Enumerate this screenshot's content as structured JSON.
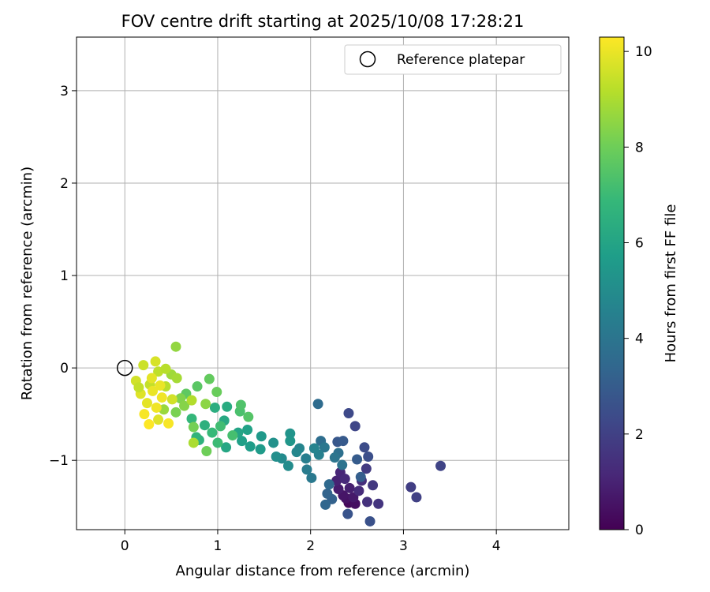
{
  "chart_data": {
    "type": "scatter",
    "title": "FOV centre drift starting at 2025/10/08 17:28:21",
    "xlabel": "Angular distance from reference (arcmin)",
    "ylabel": "Rotation from reference (arcmin)",
    "xlim": [
      -0.52,
      4.78
    ],
    "ylim": [
      -1.75,
      3.58
    ],
    "xticks": [
      0,
      1,
      2,
      3,
      4
    ],
    "yticks": [
      -1,
      0,
      1,
      2,
      3
    ],
    "xtick_labels": [
      "0",
      "1",
      "2",
      "3",
      "4"
    ],
    "ytick_labels": [
      "−1",
      "0",
      "1",
      "2",
      "3"
    ],
    "grid": true,
    "legend": {
      "placement": "top-right",
      "label": "Reference platepar",
      "marker": "open-circle"
    },
    "reference_point": {
      "x": 0,
      "y": 0
    },
    "colorbar": {
      "label": "Hours from first FF file",
      "colormap": "viridis",
      "range": [
        0,
        10.3
      ],
      "ticks": [
        0,
        2,
        4,
        6,
        8,
        10
      ],
      "tick_labels": [
        "0",
        "2",
        "4",
        "6",
        "8",
        "10"
      ],
      "stops": [
        "#440154",
        "#482878",
        "#3e4989",
        "#31688e",
        "#26828e",
        "#1f9e89",
        "#35b779",
        "#6ece58",
        "#b5de2b",
        "#fde725"
      ]
    },
    "points": [
      {
        "x": 2.41,
        "y": -1.46,
        "h": 0.2
      },
      {
        "x": 2.44,
        "y": -1.43,
        "h": 0.3
      },
      {
        "x": 2.48,
        "y": -1.47,
        "h": 0.4
      },
      {
        "x": 2.38,
        "y": -1.41,
        "h": 0.5
      },
      {
        "x": 2.35,
        "y": -1.38,
        "h": 0.6
      },
      {
        "x": 2.46,
        "y": -1.4,
        "h": 0.7
      },
      {
        "x": 2.3,
        "y": -1.31,
        "h": 0.8
      },
      {
        "x": 2.42,
        "y": -1.3,
        "h": 0.9
      },
      {
        "x": 2.28,
        "y": -1.22,
        "h": 1.0
      },
      {
        "x": 2.32,
        "y": -1.13,
        "h": 1.1
      },
      {
        "x": 2.37,
        "y": -1.2,
        "h": 1.2
      },
      {
        "x": 2.52,
        "y": -1.33,
        "h": 1.3
      },
      {
        "x": 2.55,
        "y": -1.22,
        "h": 1.4
      },
      {
        "x": 2.61,
        "y": -1.45,
        "h": 1.5
      },
      {
        "x": 2.73,
        "y": -1.47,
        "h": 1.6
      },
      {
        "x": 2.67,
        "y": -1.27,
        "h": 1.7
      },
      {
        "x": 2.6,
        "y": -1.09,
        "h": 1.8
      },
      {
        "x": 3.08,
        "y": -1.29,
        "h": 1.9
      },
      {
        "x": 3.14,
        "y": -1.4,
        "h": 2.0
      },
      {
        "x": 3.4,
        "y": -1.06,
        "h": 2.1
      },
      {
        "x": 2.48,
        "y": -0.63,
        "h": 2.2
      },
      {
        "x": 2.41,
        "y": -0.49,
        "h": 2.3
      },
      {
        "x": 2.58,
        "y": -0.86,
        "h": 2.4
      },
      {
        "x": 2.62,
        "y": -0.96,
        "h": 2.5
      },
      {
        "x": 2.64,
        "y": -1.66,
        "h": 2.6
      },
      {
        "x": 2.4,
        "y": -1.58,
        "h": 2.7
      },
      {
        "x": 2.29,
        "y": -0.8,
        "h": 2.8
      },
      {
        "x": 2.35,
        "y": -0.79,
        "h": 2.9
      },
      {
        "x": 2.5,
        "y": -0.99,
        "h": 3.0
      },
      {
        "x": 2.54,
        "y": -1.18,
        "h": 3.1
      },
      {
        "x": 2.23,
        "y": -1.42,
        "h": 3.2
      },
      {
        "x": 2.18,
        "y": -1.36,
        "h": 3.3
      },
      {
        "x": 2.16,
        "y": -1.48,
        "h": 3.4
      },
      {
        "x": 2.2,
        "y": -1.26,
        "h": 3.5
      },
      {
        "x": 2.08,
        "y": -0.39,
        "h": 3.6
      },
      {
        "x": 2.11,
        "y": -0.79,
        "h": 3.7
      },
      {
        "x": 2.3,
        "y": -0.92,
        "h": 3.8
      },
      {
        "x": 2.34,
        "y": -1.05,
        "h": 3.9
      },
      {
        "x": 2.26,
        "y": -0.97,
        "h": 4.0
      },
      {
        "x": 2.15,
        "y": -0.86,
        "h": 4.1
      },
      {
        "x": 2.01,
        "y": -1.19,
        "h": 4.2
      },
      {
        "x": 1.96,
        "y": -1.1,
        "h": 4.3
      },
      {
        "x": 1.95,
        "y": -0.98,
        "h": 4.4
      },
      {
        "x": 2.09,
        "y": -0.94,
        "h": 4.5
      },
      {
        "x": 2.04,
        "y": -0.87,
        "h": 4.6
      },
      {
        "x": 1.88,
        "y": -0.87,
        "h": 4.7
      },
      {
        "x": 1.85,
        "y": -0.91,
        "h": 4.8
      },
      {
        "x": 1.69,
        "y": -0.98,
        "h": 4.9
      },
      {
        "x": 1.76,
        "y": -1.06,
        "h": 5.0
      },
      {
        "x": 1.63,
        "y": -0.96,
        "h": 5.1
      },
      {
        "x": 1.6,
        "y": -0.81,
        "h": 5.2
      },
      {
        "x": 1.78,
        "y": -0.71,
        "h": 5.3
      },
      {
        "x": 1.78,
        "y": -0.79,
        "h": 5.4
      },
      {
        "x": 1.47,
        "y": -0.74,
        "h": 5.5
      },
      {
        "x": 1.46,
        "y": -0.88,
        "h": 5.6
      },
      {
        "x": 1.35,
        "y": -0.85,
        "h": 5.7
      },
      {
        "x": 1.26,
        "y": -0.79,
        "h": 5.8
      },
      {
        "x": 1.32,
        "y": -0.67,
        "h": 5.9
      },
      {
        "x": 1.22,
        "y": -0.7,
        "h": 6.0
      },
      {
        "x": 1.09,
        "y": -0.86,
        "h": 6.1
      },
      {
        "x": 1.07,
        "y": -0.57,
        "h": 6.2
      },
      {
        "x": 1.1,
        "y": -0.42,
        "h": 6.3
      },
      {
        "x": 0.97,
        "y": -0.43,
        "h": 6.4
      },
      {
        "x": 0.86,
        "y": -0.62,
        "h": 6.5
      },
      {
        "x": 0.8,
        "y": -0.78,
        "h": 6.6
      },
      {
        "x": 0.77,
        "y": -0.75,
        "h": 6.7
      },
      {
        "x": 0.72,
        "y": -0.55,
        "h": 6.8
      },
      {
        "x": 0.94,
        "y": -0.7,
        "h": 6.9
      },
      {
        "x": 1.0,
        "y": -0.81,
        "h": 7.0
      },
      {
        "x": 1.03,
        "y": -0.63,
        "h": 7.1
      },
      {
        "x": 1.16,
        "y": -0.73,
        "h": 7.2
      },
      {
        "x": 1.24,
        "y": -0.47,
        "h": 7.3
      },
      {
        "x": 1.25,
        "y": -0.4,
        "h": 7.4
      },
      {
        "x": 1.33,
        "y": -0.53,
        "h": 7.5
      },
      {
        "x": 0.78,
        "y": -0.2,
        "h": 7.6
      },
      {
        "x": 0.66,
        "y": -0.28,
        "h": 7.7
      },
      {
        "x": 0.91,
        "y": -0.12,
        "h": 7.8
      },
      {
        "x": 0.99,
        "y": -0.26,
        "h": 7.9
      },
      {
        "x": 0.88,
        "y": -0.9,
        "h": 8.0
      },
      {
        "x": 0.74,
        "y": -0.64,
        "h": 8.1
      },
      {
        "x": 0.55,
        "y": -0.48,
        "h": 8.2
      },
      {
        "x": 0.6,
        "y": -0.33,
        "h": 8.3
      },
      {
        "x": 0.64,
        "y": -0.41,
        "h": 8.4
      },
      {
        "x": 0.87,
        "y": -0.39,
        "h": 8.5
      },
      {
        "x": 0.55,
        "y": 0.23,
        "h": 8.6
      },
      {
        "x": 0.42,
        "y": -0.45,
        "h": 8.7
      },
      {
        "x": 0.5,
        "y": -0.07,
        "h": 8.8
      },
      {
        "x": 0.56,
        "y": -0.11,
        "h": 8.9
      },
      {
        "x": 0.74,
        "y": -0.81,
        "h": 9.0
      },
      {
        "x": 0.72,
        "y": -0.35,
        "h": 9.1
      },
      {
        "x": 0.44,
        "y": -0.2,
        "h": 9.2
      },
      {
        "x": 0.36,
        "y": -0.04,
        "h": 9.3
      },
      {
        "x": 0.27,
        "y": -0.18,
        "h": 9.4
      },
      {
        "x": 0.2,
        "y": 0.03,
        "h": 9.5
      },
      {
        "x": 0.12,
        "y": -0.14,
        "h": 9.6
      },
      {
        "x": 0.33,
        "y": 0.07,
        "h": 9.7
      },
      {
        "x": 0.17,
        "y": -0.28,
        "h": 9.8
      },
      {
        "x": 0.24,
        "y": -0.38,
        "h": 9.9
      },
      {
        "x": 0.3,
        "y": -0.25,
        "h": 10.0
      },
      {
        "x": 0.4,
        "y": -0.32,
        "h": 10.1
      },
      {
        "x": 0.47,
        "y": -0.6,
        "h": 10.2
      },
      {
        "x": 0.26,
        "y": -0.61,
        "h": 10.3
      },
      {
        "x": 0.21,
        "y": -0.5,
        "h": 10.2
      },
      {
        "x": 0.34,
        "y": -0.43,
        "h": 10.1
      },
      {
        "x": 0.38,
        "y": -0.19,
        "h": 10.0
      },
      {
        "x": 0.51,
        "y": -0.34,
        "h": 9.6
      },
      {
        "x": 0.15,
        "y": -0.21,
        "h": 9.4
      },
      {
        "x": 0.44,
        "y": -0.01,
        "h": 9.2
      },
      {
        "x": 0.29,
        "y": -0.11,
        "h": 9.9
      },
      {
        "x": 0.36,
        "y": -0.56,
        "h": 9.8
      }
    ]
  }
}
